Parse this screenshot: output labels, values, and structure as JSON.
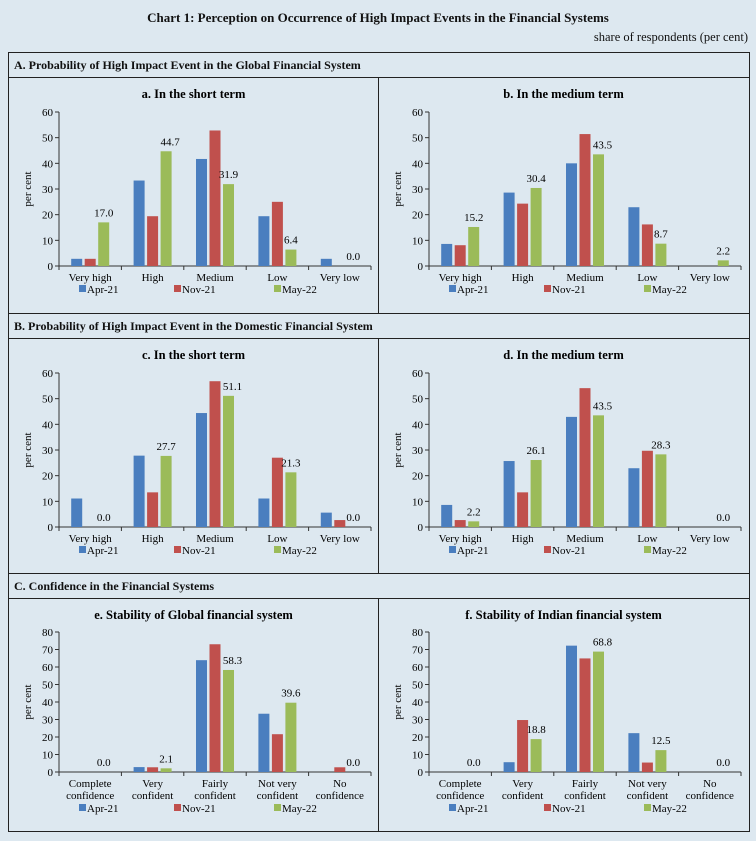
{
  "title": "Chart 1: Perception on Occurrence of High Impact Events in the Financial Systems",
  "subtitle": "share of respondents (per cent)",
  "sections": [
    {
      "label": "A. Probability of High Impact Event in the Global Financial System"
    },
    {
      "label": "B.  Probability of High Impact Event in the Domestic Financial System"
    },
    {
      "label": "C. Confidence in the Financial Systems"
    }
  ],
  "colors": {
    "Apr-21": "#4a7ebf",
    "Nov-21": "#c0504d",
    "May-22": "#9bbb59",
    "background": "#dde8f0"
  },
  "chart_data": [
    {
      "type": "bar",
      "title": "a. In the short term",
      "xlabel": "",
      "ylabel": "per cent",
      "ylim": [
        0,
        60
      ],
      "yticks": [
        0,
        10,
        20,
        30,
        40,
        50,
        60
      ],
      "categories": [
        [
          "Very high"
        ],
        [
          "High"
        ],
        [
          "Medium"
        ],
        [
          "Low"
        ],
        [
          "Very low"
        ]
      ],
      "series": [
        {
          "name": "Apr-21",
          "values": [
            2.8,
            33.3,
            41.7,
            19.4,
            2.8
          ]
        },
        {
          "name": "Nov-21",
          "values": [
            2.8,
            19.4,
            52.8,
            25.0,
            0
          ]
        },
        {
          "name": "May-22",
          "values": [
            17.0,
            44.7,
            31.9,
            6.4,
            0.0
          ],
          "labels": [
            "17.0",
            "44.7",
            "31.9",
            "6.4",
            "0.0"
          ]
        }
      ],
      "legend": "bottom"
    },
    {
      "type": "bar",
      "title": "b. In the medium term",
      "xlabel": "",
      "ylabel": "per cent",
      "ylim": [
        0,
        60
      ],
      "yticks": [
        0,
        10,
        20,
        30,
        40,
        50,
        60
      ],
      "categories": [
        [
          "Very high"
        ],
        [
          "High"
        ],
        [
          "Medium"
        ],
        [
          "Low"
        ],
        [
          "Very low"
        ]
      ],
      "series": [
        {
          "name": "Apr-21",
          "values": [
            8.6,
            28.6,
            40.0,
            22.9,
            0
          ]
        },
        {
          "name": "Nov-21",
          "values": [
            8.1,
            24.3,
            51.4,
            16.2,
            0
          ]
        },
        {
          "name": "May-22",
          "values": [
            15.2,
            30.4,
            43.5,
            8.7,
            2.2
          ],
          "labels": [
            "15.2",
            "30.4",
            "43.5",
            "8.7",
            "2.2"
          ]
        }
      ],
      "legend": "bottom"
    },
    {
      "type": "bar",
      "title": "c. In the short term",
      "xlabel": "",
      "ylabel": "per cent",
      "ylim": [
        0,
        60
      ],
      "yticks": [
        0,
        10,
        20,
        30,
        40,
        50,
        60
      ],
      "categories": [
        [
          "Very high"
        ],
        [
          "High"
        ],
        [
          "Medium"
        ],
        [
          "Low"
        ],
        [
          "Very low"
        ]
      ],
      "series": [
        {
          "name": "Apr-21",
          "values": [
            11.1,
            27.8,
            44.4,
            11.1,
            5.6
          ]
        },
        {
          "name": "Nov-21",
          "values": [
            0,
            13.5,
            56.8,
            27.0,
            2.7
          ]
        },
        {
          "name": "May-22",
          "values": [
            0.0,
            27.7,
            51.1,
            21.3,
            0.0
          ],
          "labels": [
            "0.0",
            "27.7",
            "51.1",
            "21.3",
            "0.0"
          ]
        }
      ],
      "legend": "bottom"
    },
    {
      "type": "bar",
      "title": "d. In the medium term",
      "xlabel": "",
      "ylabel": "per cent",
      "ylim": [
        0,
        60
      ],
      "yticks": [
        0,
        10,
        20,
        30,
        40,
        50,
        60
      ],
      "categories": [
        [
          "Very high"
        ],
        [
          "High"
        ],
        [
          "Medium"
        ],
        [
          "Low"
        ],
        [
          "Very low"
        ]
      ],
      "series": [
        {
          "name": "Apr-21",
          "values": [
            8.6,
            25.7,
            42.9,
            22.9,
            0
          ]
        },
        {
          "name": "Nov-21",
          "values": [
            2.7,
            13.5,
            54.1,
            29.7,
            0
          ]
        },
        {
          "name": "May-22",
          "values": [
            2.2,
            26.1,
            43.5,
            28.3,
            0.0
          ],
          "labels": [
            "2.2",
            "26.1",
            "43.5",
            "28.3",
            "0.0"
          ]
        }
      ],
      "legend": "bottom"
    },
    {
      "type": "bar",
      "title": "e. Stability of Global financial system",
      "xlabel": "",
      "ylabel": "per cent",
      "ylim": [
        0,
        80
      ],
      "yticks": [
        0,
        10,
        20,
        30,
        40,
        50,
        60,
        70,
        80
      ],
      "categories": [
        [
          "Complete",
          "confidence"
        ],
        [
          "Very",
          "confident"
        ],
        [
          "Fairly",
          "confident"
        ],
        [
          "Not very",
          "confident"
        ],
        [
          "No",
          "confidence"
        ]
      ],
      "series": [
        {
          "name": "Apr-21",
          "values": [
            0,
            2.8,
            63.9,
            33.3,
            0
          ]
        },
        {
          "name": "Nov-21",
          "values": [
            0,
            2.7,
            73.0,
            21.6,
            2.7
          ]
        },
        {
          "name": "May-22",
          "values": [
            0.0,
            2.1,
            58.3,
            39.6,
            0.0
          ],
          "labels": [
            "0.0",
            "2.1",
            "58.3",
            "39.6",
            "0.0"
          ]
        }
      ],
      "legend": "bottom"
    },
    {
      "type": "bar",
      "title": "f. Stability of Indian financial system",
      "xlabel": "",
      "ylabel": "per cent",
      "ylim": [
        0,
        80
      ],
      "yticks": [
        0,
        10,
        20,
        30,
        40,
        50,
        60,
        70,
        80
      ],
      "categories": [
        [
          "Complete",
          "confidence"
        ],
        [
          "Very",
          "confident"
        ],
        [
          "Fairly",
          "confident"
        ],
        [
          "Not very",
          "confident"
        ],
        [
          "No",
          "confidence"
        ]
      ],
      "series": [
        {
          "name": "Apr-21",
          "values": [
            0,
            5.6,
            72.2,
            22.2,
            0
          ]
        },
        {
          "name": "Nov-21",
          "values": [
            0,
            29.7,
            64.9,
            5.4,
            0
          ]
        },
        {
          "name": "May-22",
          "values": [
            0.0,
            18.8,
            68.8,
            12.5,
            0.0
          ],
          "labels": [
            "0.0",
            "18.8",
            "68.8",
            "12.5",
            "0.0"
          ]
        }
      ],
      "legend": "bottom"
    }
  ]
}
